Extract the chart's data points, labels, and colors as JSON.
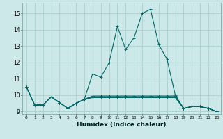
{
  "title": "",
  "xlabel": "Humidex (Indice chaleur)",
  "background_color": "#cce8e8",
  "grid_color": "#aacfcf",
  "line_color": "#006666",
  "xlim": [
    -0.5,
    23.5
  ],
  "ylim": [
    8.85,
    15.65
  ],
  "yticks": [
    9,
    10,
    11,
    12,
    13,
    14,
    15
  ],
  "xticks": [
    0,
    1,
    2,
    3,
    4,
    5,
    6,
    7,
    8,
    9,
    10,
    11,
    12,
    13,
    14,
    15,
    16,
    17,
    18,
    19,
    20,
    21,
    22,
    23
  ],
  "series": [
    [
      10.5,
      9.4,
      9.4,
      9.9,
      9.55,
      9.2,
      9.5,
      9.75,
      11.3,
      11.1,
      12.0,
      14.2,
      12.8,
      13.5,
      15.0,
      15.25,
      13.1,
      12.2,
      10.0,
      9.2,
      9.3,
      9.3,
      9.2,
      9.0
    ],
    [
      10.5,
      9.4,
      9.4,
      9.9,
      9.55,
      9.2,
      9.5,
      9.75,
      9.85,
      9.85,
      9.85,
      9.85,
      9.85,
      9.85,
      9.85,
      9.85,
      9.85,
      9.85,
      9.85,
      9.2,
      9.3,
      9.3,
      9.2,
      9.0
    ],
    [
      10.5,
      9.4,
      9.4,
      9.9,
      9.55,
      9.2,
      9.5,
      9.75,
      9.9,
      9.9,
      9.9,
      9.9,
      9.9,
      9.9,
      9.9,
      9.9,
      9.9,
      9.9,
      9.9,
      9.2,
      9.3,
      9.3,
      9.2,
      9.0
    ],
    [
      10.5,
      9.4,
      9.4,
      9.9,
      9.55,
      9.2,
      9.5,
      9.75,
      9.95,
      9.95,
      9.95,
      9.95,
      9.95,
      9.95,
      9.95,
      9.95,
      9.95,
      9.95,
      9.95,
      9.2,
      9.3,
      9.3,
      9.2,
      9.0
    ]
  ]
}
